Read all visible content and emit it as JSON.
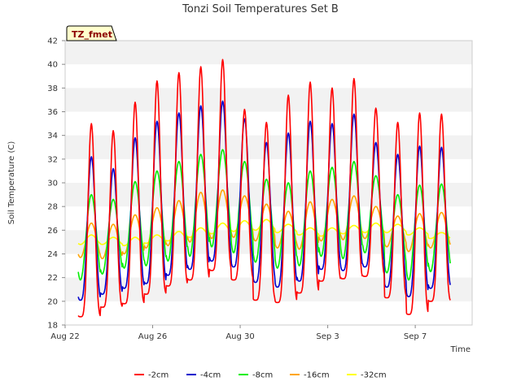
{
  "chart_data": {
    "type": "line",
    "title": "Tonzi Soil Temperatures Set B",
    "xlabel": "Time",
    "ylabel": "Soil Temperature (C)",
    "badge": "TZ_fmet",
    "ylim": [
      18,
      42
    ],
    "yticks": [
      18,
      20,
      22,
      24,
      26,
      28,
      30,
      32,
      34,
      36,
      38,
      40,
      42
    ],
    "xlim": [
      0,
      18.6
    ],
    "xtick_labels": [
      {
        "x": 0,
        "label": "Aug 22"
      },
      {
        "x": 4,
        "label": "Aug 26"
      },
      {
        "x": 8,
        "label": "Aug 30"
      },
      {
        "x": 12,
        "label": "Sep 3"
      },
      {
        "x": 16,
        "label": "Sep 7"
      }
    ],
    "grid": "horizontal bands",
    "legend_position": "bottom",
    "day_start": 0.6,
    "day_count": 17,
    "peak_phase": 0.2,
    "series": [
      {
        "name": "-2cm",
        "color": "#ff0000",
        "sharpness": 2.2,
        "daily_max": [
          35.0,
          34.4,
          36.8,
          38.6,
          39.3,
          39.8,
          40.4,
          36.2,
          35.1,
          37.4,
          38.5,
          38.0,
          38.8,
          36.3,
          35.1,
          35.9,
          35.8
        ],
        "daily_min": [
          18.7,
          19.5,
          19.8,
          20.6,
          21.3,
          21.8,
          22.6,
          21.8,
          20.1,
          19.9,
          20.7,
          21.7,
          21.9,
          22.1,
          20.3,
          18.9,
          20.0
        ]
      },
      {
        "name": "-4cm",
        "color": "#0000cc",
        "sharpness": 1.6,
        "daily_max": [
          32.2,
          31.2,
          33.8,
          35.2,
          35.9,
          36.5,
          36.9,
          35.4,
          33.4,
          34.2,
          35.2,
          35.0,
          35.8,
          33.4,
          32.4,
          33.1,
          33.0
        ],
        "daily_min": [
          20.1,
          20.6,
          21.1,
          21.5,
          22.2,
          22.7,
          23.4,
          22.9,
          21.6,
          21.2,
          21.7,
          22.7,
          22.6,
          22.9,
          21.2,
          20.4,
          21.1
        ]
      },
      {
        "name": "-8cm",
        "color": "#00ee00",
        "sharpness": 1.0,
        "daily_max": [
          29.0,
          28.6,
          30.1,
          31.0,
          31.8,
          32.4,
          32.8,
          31.8,
          30.3,
          30.0,
          31.0,
          31.3,
          31.8,
          30.6,
          29.0,
          29.8,
          29.9
        ],
        "daily_min": [
          21.8,
          22.3,
          22.8,
          23.0,
          23.4,
          23.8,
          24.6,
          24.1,
          23.3,
          22.8,
          23.0,
          23.8,
          23.6,
          24.1,
          22.4,
          21.8,
          22.5
        ]
      },
      {
        "name": "-16cm",
        "color": "#ffa500",
        "sharpness": 1.0,
        "daily_max": [
          26.6,
          26.5,
          27.3,
          27.9,
          28.5,
          29.2,
          29.4,
          28.9,
          28.2,
          27.6,
          28.4,
          28.6,
          28.9,
          28.0,
          27.2,
          27.4,
          27.5
        ],
        "daily_min": [
          23.7,
          23.6,
          24.0,
          24.5,
          24.7,
          25.0,
          25.3,
          25.4,
          25.1,
          24.5,
          24.4,
          25.1,
          25.2,
          25.3,
          24.6,
          24.2,
          24.5
        ]
      },
      {
        "name": "-32cm",
        "color": "#ffff00",
        "sharpness": 1.0,
        "daily_max": [
          25.6,
          25.4,
          25.4,
          25.6,
          25.9,
          26.2,
          26.6,
          26.8,
          26.9,
          26.5,
          26.2,
          26.2,
          26.4,
          26.6,
          26.5,
          26.2,
          25.8
        ],
        "daily_min": [
          24.8,
          24.8,
          24.7,
          24.9,
          25.1,
          25.4,
          25.7,
          25.9,
          26.0,
          25.8,
          25.6,
          25.5,
          25.7,
          25.8,
          25.8,
          25.6,
          25.3
        ]
      }
    ]
  }
}
